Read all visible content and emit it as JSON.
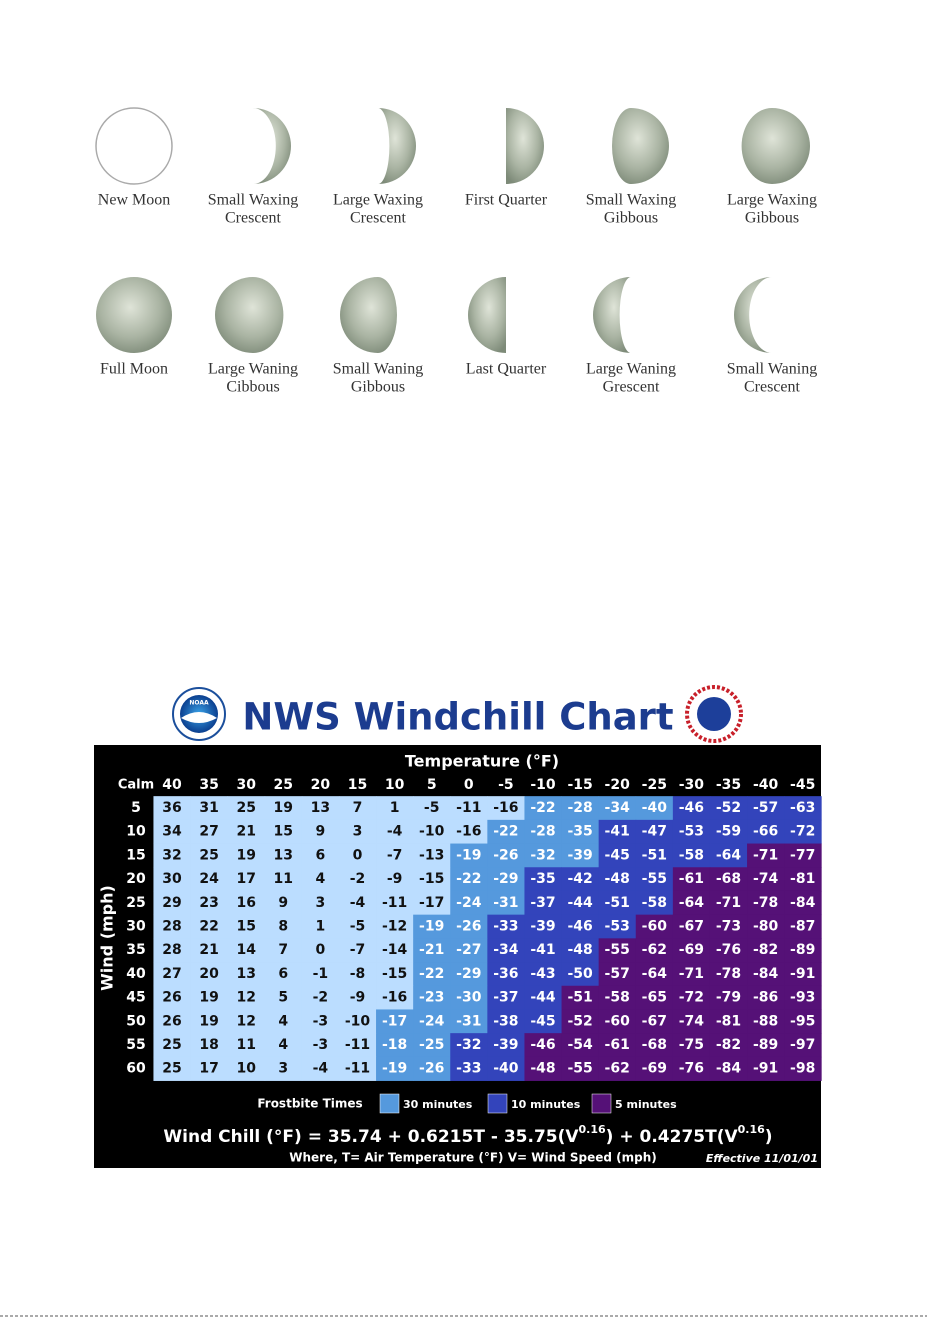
{
  "moon_phases": [
    {
      "lines": [
        "New Moon"
      ]
    },
    {
      "lines": [
        "Small Waxing",
        "Crescent"
      ]
    },
    {
      "lines": [
        "Large Waxing",
        "Crescent"
      ]
    },
    {
      "lines": [
        "First Quarter"
      ]
    },
    {
      "lines": [
        "Small Waxing",
        "Gibbous"
      ]
    },
    {
      "lines": [
        "Large Waxing",
        "Gibbous"
      ]
    },
    {
      "lines": [
        "Full Moon"
      ]
    },
    {
      "lines": [
        "Large Waning",
        "Cibbous"
      ]
    },
    {
      "lines": [
        "Small Waning",
        "Gibbous"
      ]
    },
    {
      "lines": [
        "Last Quarter"
      ]
    },
    {
      "lines": [
        "Large Waning",
        "Grescent"
      ]
    },
    {
      "lines": [
        "Small Waning",
        "Crescent"
      ]
    }
  ],
  "wind_chill": {
    "title": "NWS Windchill Chart",
    "logo_text": "NOAA",
    "temperature_label": "Temperature (°F)",
    "calm_label": "Calm",
    "wind_label": "Wind (mph)",
    "temperatures": [
      40,
      35,
      30,
      25,
      20,
      15,
      10,
      5,
      0,
      -5,
      -10,
      -15,
      -20,
      -25,
      -30,
      -35,
      -40,
      -45
    ],
    "rows": [
      {
        "wind": 5,
        "values": [
          36,
          31,
          25,
          19,
          13,
          7,
          1,
          -5,
          -11,
          -16,
          -22,
          -28,
          -34,
          -40,
          -46,
          -52,
          -57,
          -63
        ],
        "colors": [
          "#bdf",
          "#bdf",
          "#bdf",
          "#bdf",
          "#bdf",
          "#bdf",
          "#bdf",
          "#bdf",
          "#bdf",
          "#bdf",
          "#59d",
          "#59d",
          "#59d",
          "#59d",
          "#34b",
          "#34b",
          "#34b",
          "#34b"
        ]
      },
      {
        "wind": 10,
        "values": [
          34,
          27,
          21,
          15,
          9,
          3,
          -4,
          -10,
          -16,
          -22,
          -28,
          -35,
          -41,
          -47,
          -53,
          -59,
          -66,
          -72
        ],
        "colors": [
          "#bdf",
          "#bdf",
          "#bdf",
          "#bdf",
          "#bdf",
          "#bdf",
          "#bdf",
          "#bdf",
          "#bdf",
          "#59d",
          "#59d",
          "#59d",
          "#34b",
          "#34b",
          "#34b",
          "#34b",
          "#34b",
          "#34b"
        ]
      },
      {
        "wind": 15,
        "values": [
          32,
          25,
          19,
          13,
          6,
          0,
          -7,
          -13,
          -19,
          -26,
          -32,
          -39,
          -45,
          -51,
          -58,
          -64,
          -71,
          -77
        ],
        "colors": [
          "#bdf",
          "#bdf",
          "#bdf",
          "#bdf",
          "#bdf",
          "#bdf",
          "#bdf",
          "#bdf",
          "#59d",
          "#59d",
          "#59d",
          "#59d",
          "#34b",
          "#34b",
          "#34b",
          "#34b",
          "#517",
          "#517"
        ]
      },
      {
        "wind": 20,
        "values": [
          30,
          24,
          17,
          11,
          4,
          -2,
          -9,
          -15,
          -22,
          -29,
          -35,
          -42,
          -48,
          -55,
          -61,
          -68,
          -74,
          -81
        ],
        "colors": [
          "#bdf",
          "#bdf",
          "#bdf",
          "#bdf",
          "#bdf",
          "#bdf",
          "#bdf",
          "#bdf",
          "#59d",
          "#59d",
          "#34b",
          "#34b",
          "#34b",
          "#34b",
          "#517",
          "#517",
          "#517",
          "#517"
        ]
      },
      {
        "wind": 25,
        "values": [
          29,
          23,
          16,
          9,
          3,
          -4,
          -11,
          -17,
          -24,
          -31,
          -37,
          -44,
          -51,
          -58,
          -64,
          -71,
          -78,
          -84
        ],
        "colors": [
          "#bdf",
          "#bdf",
          "#bdf",
          "#bdf",
          "#bdf",
          "#bdf",
          "#bdf",
          "#bdf",
          "#59d",
          "#59d",
          "#34b",
          "#34b",
          "#34b",
          "#34b",
          "#517",
          "#517",
          "#517",
          "#517"
        ]
      },
      {
        "wind": 30,
        "values": [
          28,
          22,
          15,
          8,
          1,
          -5,
          -12,
          -19,
          -26,
          -33,
          -39,
          -46,
          -53,
          -60,
          -67,
          -73,
          -80,
          -87
        ],
        "colors": [
          "#bdf",
          "#bdf",
          "#bdf",
          "#bdf",
          "#bdf",
          "#bdf",
          "#bdf",
          "#59d",
          "#59d",
          "#34b",
          "#34b",
          "#34b",
          "#34b",
          "#517",
          "#517",
          "#517",
          "#517",
          "#517"
        ]
      },
      {
        "wind": 35,
        "values": [
          28,
          21,
          14,
          7,
          0,
          -7,
          -14,
          -21,
          -27,
          -34,
          -41,
          -48,
          -55,
          -62,
          -69,
          -76,
          -82,
          -89
        ],
        "colors": [
          "#bdf",
          "#bdf",
          "#bdf",
          "#bdf",
          "#bdf",
          "#bdf",
          "#bdf",
          "#59d",
          "#59d",
          "#34b",
          "#34b",
          "#34b",
          "#517",
          "#517",
          "#517",
          "#517",
          "#517",
          "#517"
        ]
      },
      {
        "wind": 40,
        "values": [
          27,
          20,
          13,
          6,
          -1,
          -8,
          -15,
          -22,
          -29,
          -36,
          -43,
          -50,
          -57,
          -64,
          -71,
          -78,
          -84,
          -91
        ],
        "colors": [
          "#bdf",
          "#bdf",
          "#bdf",
          "#bdf",
          "#bdf",
          "#bdf",
          "#bdf",
          "#59d",
          "#59d",
          "#34b",
          "#34b",
          "#34b",
          "#517",
          "#517",
          "#517",
          "#517",
          "#517",
          "#517"
        ]
      },
      {
        "wind": 45,
        "values": [
          26,
          19,
          12,
          5,
          -2,
          -9,
          -16,
          -23,
          -30,
          -37,
          -44,
          -51,
          -58,
          -65,
          -72,
          -79,
          -86,
          -93
        ],
        "colors": [
          "#bdf",
          "#bdf",
          "#bdf",
          "#bdf",
          "#bdf",
          "#bdf",
          "#bdf",
          "#59d",
          "#59d",
          "#34b",
          "#34b",
          "#517",
          "#517",
          "#517",
          "#517",
          "#517",
          "#517",
          "#517"
        ]
      },
      {
        "wind": 50,
        "values": [
          26,
          19,
          12,
          4,
          -3,
          -10,
          -17,
          -24,
          -31,
          -38,
          -45,
          -52,
          -60,
          -67,
          -74,
          -81,
          -88,
          -95
        ],
        "colors": [
          "#bdf",
          "#bdf",
          "#bdf",
          "#bdf",
          "#bdf",
          "#bdf",
          "#59d",
          "#59d",
          "#59d",
          "#34b",
          "#34b",
          "#517",
          "#517",
          "#517",
          "#517",
          "#517",
          "#517",
          "#517"
        ]
      },
      {
        "wind": 55,
        "values": [
          25,
          18,
          11,
          4,
          -3,
          -11,
          -18,
          -25,
          -32,
          -39,
          -46,
          -54,
          -61,
          -68,
          -75,
          -82,
          -89,
          -97
        ],
        "colors": [
          "#bdf",
          "#bdf",
          "#bdf",
          "#bdf",
          "#bdf",
          "#bdf",
          "#59d",
          "#59d",
          "#34b",
          "#34b",
          "#517",
          "#517",
          "#517",
          "#517",
          "#517",
          "#517",
          "#517",
          "#517"
        ]
      },
      {
        "wind": 60,
        "values": [
          25,
          17,
          10,
          3,
          -4,
          -11,
          -19,
          -26,
          -33,
          -40,
          -48,
          -55,
          -62,
          -69,
          -76,
          -84,
          -91,
          -98
        ],
        "colors": [
          "#bdf",
          "#bdf",
          "#bdf",
          "#bdf",
          "#bdf",
          "#bdf",
          "#59d",
          "#59d",
          "#34b",
          "#34b",
          "#517",
          "#517",
          "#517",
          "#517",
          "#517",
          "#517",
          "#517",
          "#517"
        ]
      }
    ],
    "legend": {
      "title": "Frostbite Times",
      "items": [
        {
          "label": "30 minutes",
          "color": "#59d"
        },
        {
          "label": "10 minutes",
          "color": "#34b"
        },
        {
          "label": "5 minutes",
          "color": "#517"
        }
      ]
    },
    "formula_parts": [
      "Wind Chill (°F) = 35.74 + 0.6215T - 35.75(V",
      "0.16",
      ") + 0.4275T(V",
      "0.16",
      ")"
    ],
    "where": "Where, T= Air Temperature (°F)   V= Wind Speed (mph)",
    "effective": "Effective 11/01/01"
  }
}
